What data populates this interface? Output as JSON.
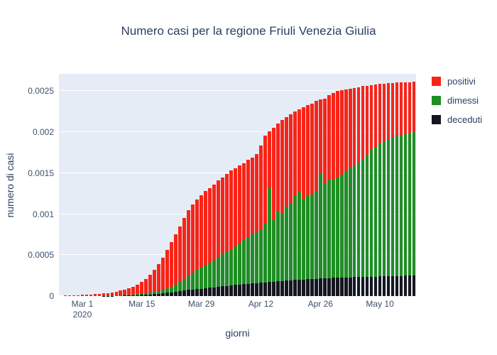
{
  "title": "Numero casi per la regione Friuli Venezia Giulia",
  "colors": {
    "positivi": "#f82418",
    "dimessi": "#1f8e23",
    "deceduti": "#16161e",
    "plot_background": "#e5ecf6",
    "gridline": "#ffffff",
    "title_text": "#2a3f5f",
    "tick_text": "#3d4f6d"
  },
  "legend": {
    "items": [
      {
        "label": "positivi",
        "color": "#f82418"
      },
      {
        "label": "dimessi",
        "color": "#1f8e23"
      },
      {
        "label": "deceduti",
        "color": "#16161e"
      }
    ]
  },
  "x_axis": {
    "label": "giorni",
    "ticks": [
      {
        "label": "Mar 1",
        "sub_label": "2020",
        "day_index": 5
      },
      {
        "label": "Mar 15",
        "sub_label": "",
        "day_index": 19
      },
      {
        "label": "Mar 29",
        "sub_label": "",
        "day_index": 33
      },
      {
        "label": "Apr 12",
        "sub_label": "",
        "day_index": 47
      },
      {
        "label": "Apr 26",
        "sub_label": "",
        "day_index": 61
      },
      {
        "label": "May 10",
        "sub_label": "",
        "day_index": 75
      }
    ]
  },
  "y_axis": {
    "label": "numero di casi",
    "tick_values": [
      0,
      0.0005,
      0.001,
      0.0015,
      0.002,
      0.0025
    ],
    "tick_labels": [
      "0",
      "0.0005",
      "0.001",
      "0.0015",
      "0.002",
      "0.0025"
    ],
    "max": 0.00271
  },
  "chart_data": {
    "type": "bar",
    "stacked": true,
    "stack_order_bottom_to_top": [
      "deceduti",
      "dimessi",
      "positivi"
    ],
    "title": "Numero casi per la regione Friuli Venezia Giulia",
    "xlabel": "giorni",
    "ylabel": "numero di casi",
    "ylim": [
      0,
      0.00271
    ],
    "grid": true,
    "legend_position": "right",
    "dates": [
      "2020-02-25",
      "2020-02-26",
      "2020-02-27",
      "2020-02-28",
      "2020-02-29",
      "2020-03-01",
      "2020-03-02",
      "2020-03-03",
      "2020-03-04",
      "2020-03-05",
      "2020-03-06",
      "2020-03-07",
      "2020-03-08",
      "2020-03-09",
      "2020-03-10",
      "2020-03-11",
      "2020-03-12",
      "2020-03-13",
      "2020-03-14",
      "2020-03-15",
      "2020-03-16",
      "2020-03-17",
      "2020-03-18",
      "2020-03-19",
      "2020-03-20",
      "2020-03-21",
      "2020-03-22",
      "2020-03-23",
      "2020-03-24",
      "2020-03-25",
      "2020-03-26",
      "2020-03-27",
      "2020-03-28",
      "2020-03-29",
      "2020-03-30",
      "2020-03-31",
      "2020-04-01",
      "2020-04-02",
      "2020-04-03",
      "2020-04-04",
      "2020-04-05",
      "2020-04-06",
      "2020-04-07",
      "2020-04-08",
      "2020-04-09",
      "2020-04-10",
      "2020-04-11",
      "2020-04-12",
      "2020-04-13",
      "2020-04-14",
      "2020-04-15",
      "2020-04-16",
      "2020-04-17",
      "2020-04-18",
      "2020-04-19",
      "2020-04-20",
      "2020-04-21",
      "2020-04-22",
      "2020-04-23",
      "2020-04-24",
      "2020-04-25",
      "2020-04-26",
      "2020-04-27",
      "2020-04-28",
      "2020-04-29",
      "2020-04-30",
      "2020-05-01",
      "2020-05-02",
      "2020-05-03",
      "2020-05-04",
      "2020-05-05",
      "2020-05-06",
      "2020-05-07",
      "2020-05-08",
      "2020-05-09",
      "2020-05-10",
      "2020-05-11",
      "2020-05-12",
      "2020-05-13",
      "2020-05-14",
      "2020-05-15",
      "2020-05-16",
      "2020-05-17",
      "2020-05-18"
    ],
    "series": [
      {
        "name": "positivi",
        "color": "#f82418",
        "values": [
          0,
          5e-06,
          8e-06,
          1e-05,
          1.3e-05,
          1.5e-05,
          1.6e-05,
          1.8e-05,
          2e-05,
          2.3e-05,
          2.7e-05,
          3.2e-05,
          3.7e-05,
          4.4e-05,
          5.3e-05,
          6.5e-05,
          7.9e-05,
          9.6e-05,
          0.000115,
          0.00014,
          0.000174,
          0.000217,
          0.000268,
          0.000327,
          0.000393,
          0.000466,
          0.000545,
          0.00061,
          0.00068,
          0.000745,
          0.000805,
          0.00083,
          0.00086,
          0.000881,
          0.000902,
          0.000913,
          0.000925,
          0.000945,
          0.000942,
          0.000947,
          0.000959,
          0.000952,
          0.000952,
          0.000939,
          0.000944,
          0.000937,
          0.000954,
          0.001029,
          0.00108,
          0.00069,
          0.00112,
          0.00106,
          0.00114,
          0.00109,
          0.00109,
          0.00102,
          0.001,
          0.00111,
          0.00111,
          0.00111,
          0.00111,
          0.0009,
          0.00103,
          0.00103,
          0.00105,
          0.00105,
          0.00103,
          0.001,
          0.00097,
          0.00095,
          0.000925,
          0.0009,
          0.000845,
          0.000793,
          0.00076,
          0.000725,
          0.0007,
          0.000685,
          0.000673,
          0.000659,
          0.000644,
          0.000633,
          0.00062,
          0.000611
        ]
      },
      {
        "name": "dimessi",
        "color": "#1f8e23",
        "values": [
          0,
          0,
          0,
          0,
          0,
          1e-06,
          1e-06,
          2e-06,
          2e-06,
          3e-06,
          3e-06,
          4e-06,
          5e-06,
          6e-06,
          7e-06,
          8e-06,
          9e-06,
          1.1e-05,
          1.3e-05,
          1.6e-05,
          1.9e-05,
          2.3e-05,
          2.8e-05,
          3.4e-05,
          4.3e-05,
          5.4e-05,
          6.8e-05,
          8.6e-05,
          0.000109,
          0.000137,
          0.00017,
          0.000209,
          0.000234,
          0.000258,
          0.000282,
          0.000306,
          0.000328,
          0.000352,
          0.000389,
          0.000419,
          0.000442,
          0.000473,
          0.000497,
          0.000535,
          0.000565,
          0.000598,
          0.000618,
          0.00065,
          0.000715,
          0.00115,
          0.000755,
          0.00086,
          0.000826,
          0.000902,
          0.000938,
          0.001034,
          0.001081,
          0.000988,
          0.001015,
          0.001032,
          0.00106,
          0.001287,
          0.001164,
          0.001201,
          0.001208,
          0.001226,
          0.001254,
          0.001292,
          0.001331,
          0.001359,
          0.001393,
          0.001426,
          0.001485,
          0.001544,
          0.001583,
          0.001621,
          0.00165,
          0.001668,
          0.001684,
          0.001699,
          0.001716,
          0.001727,
          0.00174,
          0.001749
        ]
      },
      {
        "name": "deceduti",
        "color": "#16161e",
        "values": [
          0,
          0,
          0,
          0,
          0,
          0,
          1e-06,
          1e-06,
          2e-06,
          2e-06,
          3e-06,
          3e-06,
          4e-06,
          5e-06,
          6e-06,
          7e-06,
          9e-06,
          1e-05,
          1.2e-05,
          1.4e-05,
          1.7e-05,
          2e-05,
          2.4e-05,
          2.9e-05,
          3.4e-05,
          4e-05,
          4.7e-05,
          5.4e-05,
          6.1e-05,
          6.8e-05,
          7.5e-05,
          8.1e-05,
          8.6e-05,
          9.1e-05,
          9.6e-05,
          0.000101,
          0.000107,
          0.000113,
          0.000119,
          0.000124,
          0.000129,
          0.000135,
          0.000141,
          0.000146,
          0.000151,
          0.000155,
          0.000158,
          0.000161,
          0.000165,
          0.00017,
          0.000175,
          0.00018,
          0.000184,
          0.000188,
          0.000192,
          0.000196,
          0.000199,
          0.000202,
          0.000205,
          0.000208,
          0.00021,
          0.000213,
          0.000216,
          0.000219,
          0.000222,
          0.000224,
          0.000226,
          0.000228,
          0.000229,
          0.000231,
          0.000232,
          0.000234,
          0.000235,
          0.000236,
          0.000237,
          0.000239,
          0.00024,
          0.000242,
          0.000243,
          0.000245,
          0.000246,
          0.000248,
          0.00025,
          0.000253
        ]
      }
    ]
  }
}
